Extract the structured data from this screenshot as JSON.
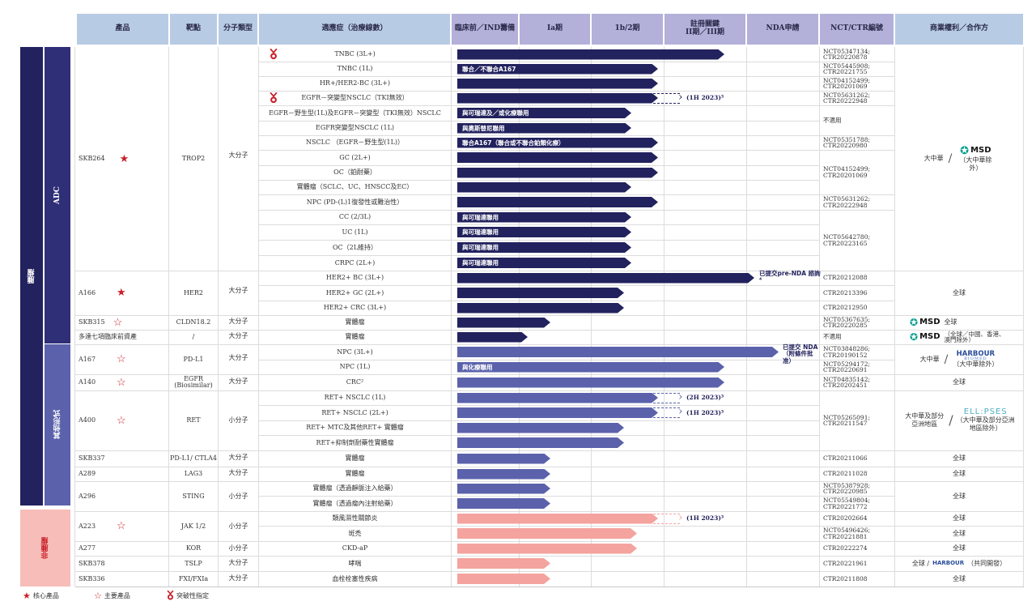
{
  "headers": {
    "product": "產品",
    "target": "靶點",
    "molecule_type": "分子類型",
    "indication": "適應症（治療線數）",
    "preclinical": "臨床前／IND籌備",
    "phase_1a": "Ia期",
    "phase_1b2": "1b/2期",
    "pivotal_line1": "註冊關鍵",
    "pivotal_line2": "II期／III期",
    "nda": "NDA申請",
    "nct_ctr": "NCT/CTR編號",
    "rights": "商業權利／合作方"
  },
  "categories": {
    "oncology": "腫瘤",
    "adc": "ADC",
    "other_forms": "其他形式",
    "non_oncology": "非腫瘤"
  },
  "products": {
    "skb264": {
      "name": "SKB264",
      "target": "TROP2",
      "type": "大分子",
      "rights_left": "大中華",
      "rights_partner": "MSD",
      "rights_note": "（大中華除外）"
    },
    "a166": {
      "name": "A166",
      "target": "HER2",
      "type": "大分子",
      "rights": "全球"
    },
    "skb315": {
      "name": "SKB315",
      "target": "CLDN18.2",
      "type": "大分子",
      "rights_partner": "MSD",
      "rights": "全球"
    },
    "multi": {
      "name": "多達七項臨床前資產",
      "target": "/",
      "type": "大分子",
      "rights_partner": "MSD",
      "rights_note": "（全球／中國、香港、澳門除外）"
    },
    "a167": {
      "name": "A167",
      "target": "PD-L1",
      "type": "大分子",
      "rights_left": "大中華",
      "rights_partner": "HARBOUR",
      "rights_partner_sub": "BIOMED",
      "rights_note": "（大中華除外）"
    },
    "a140": {
      "name": "A140",
      "target": "EGFR",
      "target_sub": "(Biosimilar)",
      "type": "大分子",
      "rights": "全球"
    },
    "a400": {
      "name": "A400",
      "target": "RET",
      "type": "小分子",
      "rights_left": "大中華及部分亞洲地區",
      "rights_partner": "ELL:PSES",
      "rights_note": "（大中華及部分亞洲地區除外）"
    },
    "skb337": {
      "name": "SKB337",
      "target": "PD-L1/ CTLA4",
      "type": "大分子",
      "rights": "全球"
    },
    "a289": {
      "name": "A289",
      "target": "LAG3",
      "type": "大分子",
      "rights": "全球"
    },
    "a296": {
      "name": "A296",
      "target": "STING",
      "type": "小分子",
      "rights": "全球"
    },
    "a223": {
      "name": "A223",
      "target": "JAK 1/2",
      "type": "小分子",
      "rights": "全球"
    },
    "a277": {
      "name": "A277",
      "target": "KOR",
      "type": "小分子",
      "rights": "全球"
    },
    "skb378": {
      "name": "SKB378",
      "target": "TSLP",
      "type": "大分子",
      "rights": "全球 /",
      "rights_partner": "HARBOUR",
      "rights_note": "（共同開發）"
    },
    "skb336": {
      "name": "SKB336",
      "target": "FXI/FXIa",
      "type": "大分子",
      "rights": "全球"
    }
  },
  "indications": [
    {
      "label": "TNBC (3L+)",
      "bar_label": "",
      "nct": "NCT05347134;\nCTR20220878"
    },
    {
      "label": "TNBC (1L)",
      "bar_label": "聯合／不聯合A167",
      "nct": "NCT05445908;\nCTR20221755"
    },
    {
      "label": "HR+/HER2-BC (3L+)",
      "bar_label": "",
      "nct": "NCT04152499;\nCTR20201069"
    },
    {
      "label": "EGFR－突變型NSCLC（TKI無效）",
      "bar_label": "",
      "note": "(1H 2023)³",
      "nct": "NCT05631262;\nCTR20222948"
    },
    {
      "label": "EGFR－野生型(1L)及EGFR－突變型（TKI無效）NSCLC",
      "bar_label": "與可瑞達及／或化療聯用"
    },
    {
      "label": "EGFR突變型NSCLC (1L)",
      "bar_label": "與奧斯替尼聯用",
      "nct": "不適用"
    },
    {
      "label": "NSCLC （EGFR－野生型(1L)）",
      "bar_label": "聯合A167（聯合或不聯合鉑類化療）",
      "nct": "NCT05351788;\nCTR20220980"
    },
    {
      "label": "GC (2L+)",
      "bar_label": ""
    },
    {
      "label": "OC（鉑耐藥）",
      "bar_label": "",
      "nct": "NCT04152499;\nCTR20201069"
    },
    {
      "label": "實體瘤（SCLC、UC、HNSCC及EC）",
      "bar_label": ""
    },
    {
      "label": "NPC (PD-(L)1復發性或難治性）",
      "bar_label": "",
      "nct": "NCT05631262;\nCTR20222948"
    },
    {
      "label": "CC (2/3L)",
      "bar_label": "與可瑞達聯用"
    },
    {
      "label": "UC (1L)",
      "bar_label": "與可瑞達聯用",
      "nct": "NCT05642780;\nCTR20223165"
    },
    {
      "label": "OC（2L維持）",
      "bar_label": "與可瑞達聯用"
    },
    {
      "label": "CRPC (2L+)",
      "bar_label": "與可瑞達聯用"
    },
    {
      "label": "HER2+ BC (3L+)",
      "bar_label": "",
      "note": "已提交pre-NDA 諮詢⁴",
      "nct": "CTR20212088"
    },
    {
      "label": "HER2+ GC (2L+)",
      "bar_label": "",
      "nct": "CTR20213396"
    },
    {
      "label": "HER2+ CRC (3L+)",
      "bar_label": "",
      "nct": "CTR20212950"
    },
    {
      "label": "實體瘤",
      "bar_label": "",
      "nct": "NCT05367635;\nCTR20220285"
    },
    {
      "label": "實體瘤",
      "bar_label": "",
      "nct": "不適用"
    },
    {
      "label": "NPC (3L+)",
      "bar_label": "",
      "note": "已提交 NDA（附條件批准）",
      "nct": "NCT03848286;\nCTR20190152"
    },
    {
      "label": "NPC (1L)",
      "bar_label": "與化療聯用",
      "nct": "NCT05294172;\nCTR20220691"
    },
    {
      "label": "CRC²",
      "bar_label": "",
      "nct": "NCT04835142;\nCTR20202451"
    },
    {
      "label": "RET+ NSCLC (1L)",
      "bar_label": "",
      "note": "(2H 2023)³"
    },
    {
      "label": "RET+ NSCLC (2L+)",
      "bar_label": "",
      "note": "(1H 2023)³",
      "nct": "NCT05265091;\nCTR20211547"
    },
    {
      "label": "RET+ MTC及其他RET+ 實體瘤",
      "bar_label": ""
    },
    {
      "label": "RET+抑制劑耐藥性實體瘤",
      "bar_label": ""
    },
    {
      "label": "實體瘤",
      "bar_label": "",
      "nct": "CTR20211066"
    },
    {
      "label": "實體瘤",
      "bar_label": "",
      "nct": "CTR20211028"
    },
    {
      "label": "實體瘤（透過靜脈注入給藥）",
      "bar_label": "",
      "nct": "NCT05387928;\nCTR20220985"
    },
    {
      "label": "實體瘤（透過瘤內注射給藥）",
      "bar_label": "",
      "nct": "NCT05549804;\nCTR20221772"
    },
    {
      "label": "類風濕性關節炎",
      "bar_label": "",
      "note": "(1H 2023)³",
      "nct": "CTR20202664"
    },
    {
      "label": "斑禿",
      "bar_label": "",
      "nct": "NCT05496426;\nCTR20221881"
    },
    {
      "label": "CKD-aP",
      "bar_label": "",
      "nct": "CTR20222274"
    },
    {
      "label": "哮喘",
      "bar_label": "",
      "nct": "CTR20221961"
    },
    {
      "label": "血栓栓塞性疾病",
      "bar_label": "",
      "nct": "CTR20211808"
    }
  ],
  "legend": {
    "core": "核心產品",
    "main": "主要產品",
    "breakthrough": "突破性指定"
  },
  "colors": {
    "header_blue": "#b8cbe4",
    "header_purple": "#b3b0d9",
    "oncology_dark": "#22225e",
    "adc": "#2f2f78",
    "other_forms": "#5b62ab",
    "non_oncology": "#f7bdb9",
    "pink_bar": "#f4a39e",
    "star_red": "#c8202a"
  }
}
